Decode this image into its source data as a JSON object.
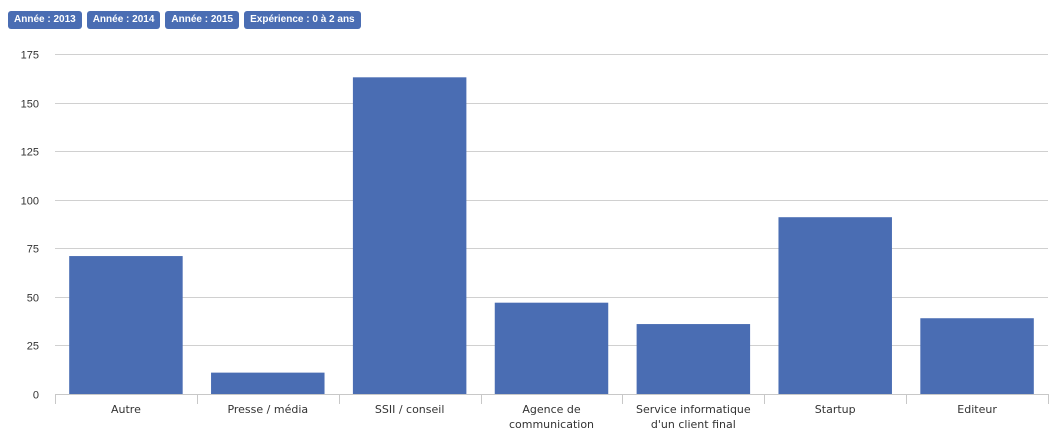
{
  "filters": [
    {
      "label": "Année : 2013"
    },
    {
      "label": "Année : 2014"
    },
    {
      "label": "Année : 2015"
    },
    {
      "label": "Expérience : 0 à 2 ans"
    }
  ],
  "colors": {
    "bar": "#4a6db3",
    "tag_bg": "#4a6db3",
    "grid": "#d0d0d0",
    "axis": "#c8c8c8",
    "text": "#333333"
  },
  "chart_data": {
    "type": "bar",
    "categories": [
      [
        "Autre"
      ],
      [
        "Presse / média"
      ],
      [
        "SSII / conseil"
      ],
      [
        "Agence de",
        "communication"
      ],
      [
        "Service informatique",
        "d'un client final"
      ],
      [
        "Startup"
      ],
      [
        "Editeur"
      ]
    ],
    "values": [
      71,
      11,
      163,
      47,
      36,
      91,
      39
    ],
    "title": "",
    "xlabel": "",
    "ylabel": "",
    "ylim": [
      0,
      175
    ],
    "yticks": [
      0,
      25,
      50,
      75,
      100,
      125,
      150,
      175
    ],
    "grid": true,
    "legend": "none"
  }
}
